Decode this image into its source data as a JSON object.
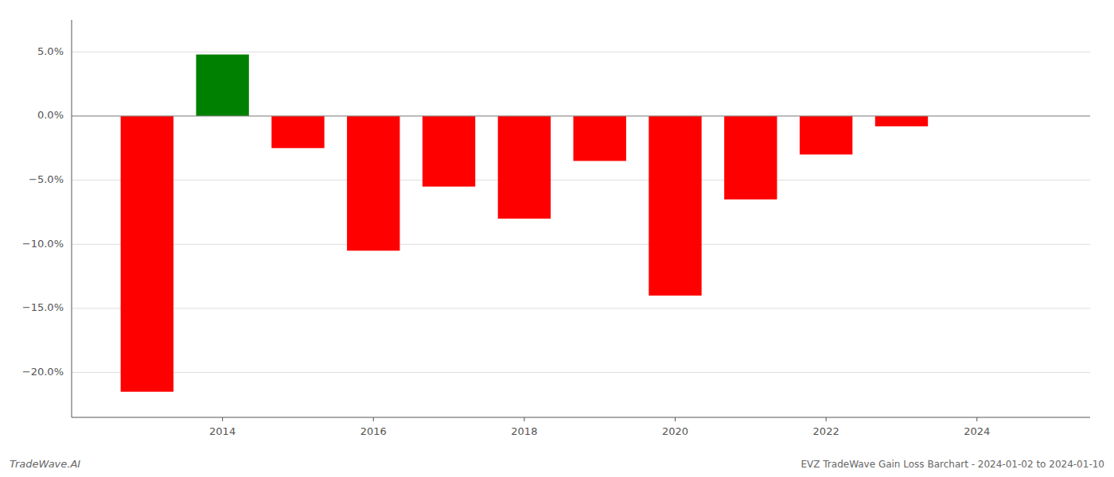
{
  "chart_data": {
    "type": "bar",
    "title": "EVZ TradeWave Gain Loss Barchart - 2024-01-02 to 2024-01-10",
    "annotations": [
      "TradeWave.AI"
    ],
    "x": [
      2013,
      2014,
      2015,
      2016,
      2017,
      2018,
      2019,
      2020,
      2021,
      2022,
      2023
    ],
    "values": [
      -21.5,
      4.8,
      -2.5,
      -10.5,
      -5.5,
      -8.0,
      -3.5,
      -14.0,
      -6.5,
      -3.0,
      -0.8
    ],
    "colors": [
      "#ff0000",
      "#008000",
      "#ff0000",
      "#ff0000",
      "#ff0000",
      "#ff0000",
      "#ff0000",
      "#ff0000",
      "#ff0000",
      "#ff0000",
      "#ff0000"
    ],
    "xlim": [
      2012.0,
      2025.5
    ],
    "xticks": [
      2014,
      2016,
      2018,
      2020,
      2022,
      2024
    ],
    "ylim": [
      -23.5,
      7.5
    ],
    "yticks": [
      {
        "value": 5.0,
        "label": "5.0%"
      },
      {
        "value": 0.0,
        "label": "0.0%"
      },
      {
        "value": -5.0,
        "label": "−5.0%"
      },
      {
        "value": -10.0,
        "label": "−10.0%"
      },
      {
        "value": -15.0,
        "label": "−15.0%"
      },
      {
        "value": -20.0,
        "label": "−20.0%"
      }
    ],
    "grid": true
  }
}
